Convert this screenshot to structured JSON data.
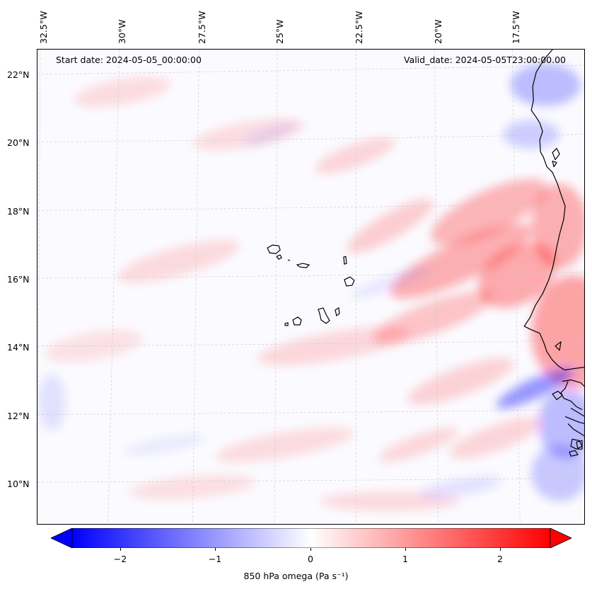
{
  "header": {
    "start_date": "Start date: 2024-05-05_00:00:00",
    "valid_date": "Valid_date: 2024-05-05T23:00:00.00"
  },
  "map": {
    "lon_labels": [
      "32.5°W",
      "30°W",
      "27.5°W",
      "25°W",
      "22.5°W",
      "20°W",
      "17.5°W"
    ],
    "lat_labels": [
      "22°N",
      "20°N",
      "18°N",
      "16°N",
      "14°N",
      "12°N",
      "10°N"
    ],
    "extent": {
      "lon_min": -33.0,
      "lon_max": -15.6,
      "lat_min": 8.9,
      "lat_max": 22.8
    },
    "colors": {
      "negative": "#0000ff",
      "zero": "#ffffff",
      "positive": "#ff0000",
      "coast": "#000000",
      "grid": "#b0b0b0"
    }
  },
  "colorbar": {
    "title": "850 hPa omega (Pa s⁻¹)",
    "range": [
      -2.6,
      2.6
    ],
    "ticks": [
      {
        "value": -2,
        "label": "−2"
      },
      {
        "value": -1,
        "label": "−1"
      },
      {
        "value": 0,
        "label": "0"
      },
      {
        "value": 1,
        "label": "1"
      },
      {
        "value": 2,
        "label": "2"
      }
    ]
  }
}
